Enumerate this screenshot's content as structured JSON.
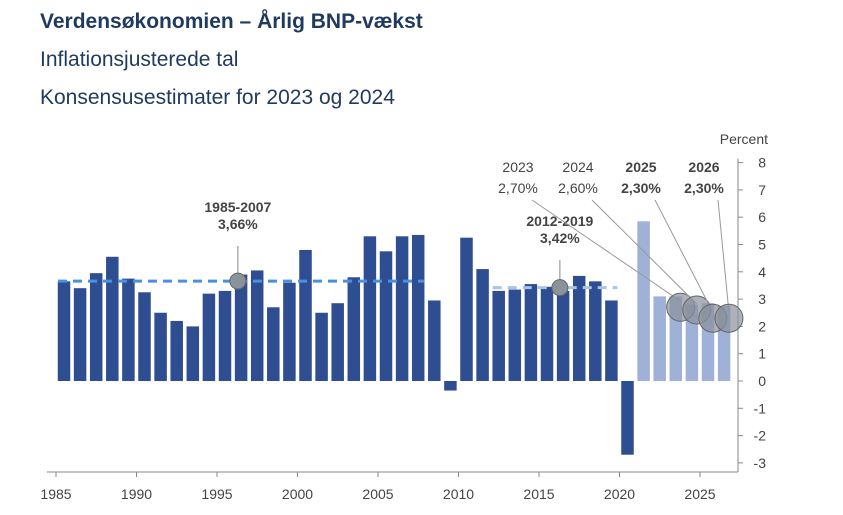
{
  "title": "Verdensøkonomien – Årlig BNP-vækst",
  "subtitle1": "Inflationsjusterede tal",
  "subtitle2": "Konsensusestimater for 2023 og 2024",
  "chart_data": {
    "type": "bar",
    "ylabel": "Percent",
    "ylim": [
      -3,
      8
    ],
    "yticks": [
      8,
      7,
      6,
      5,
      4,
      3,
      2,
      1,
      0,
      -1,
      -2,
      -3
    ],
    "xticks": [
      1985,
      1990,
      1995,
      2000,
      2005,
      2010,
      2015,
      2020,
      2025
    ],
    "colors": {
      "actual": "#2f4d91",
      "estimate": "#9fb1d6",
      "avg_line": "#4a90e2",
      "avg_line2": "#a8c4e8",
      "marker": "#8a929c"
    },
    "actual": {
      "x": [
        1985,
        1986,
        1987,
        1988,
        1989,
        1990,
        1991,
        1992,
        1993,
        1994,
        1995,
        1996,
        1997,
        1998,
        1999,
        2000,
        2001,
        2002,
        2003,
        2004,
        2005,
        2006,
        2007,
        2008,
        2009,
        2010,
        2011,
        2012,
        2013,
        2014,
        2015,
        2016,
        2017,
        2018,
        2019,
        2020
      ],
      "values": [
        3.65,
        3.4,
        3.95,
        4.55,
        3.75,
        3.25,
        2.5,
        2.2,
        2.0,
        3.2,
        3.3,
        3.9,
        4.05,
        2.7,
        3.6,
        4.8,
        2.5,
        2.85,
        3.8,
        5.3,
        4.75,
        5.3,
        5.35,
        2.95,
        -0.35,
        5.25,
        4.1,
        3.3,
        3.35,
        3.55,
        3.45,
        3.3,
        3.85,
        3.65,
        2.95,
        -2.7
      ]
    },
    "estimate": {
      "x": [
        2021,
        2022,
        2023,
        2024,
        2025,
        2026
      ],
      "values": [
        5.85,
        3.1,
        3.1,
        2.8,
        2.85,
        2.75
      ]
    },
    "averages": [
      {
        "period": "1985-2007",
        "value": "3,66%",
        "y": 3.66,
        "from": 1985,
        "to": 2007,
        "marker_x": 1995.8
      },
      {
        "period": "2012-2019",
        "value": "3,42%",
        "y": 3.42,
        "from": 2012,
        "to": 2019,
        "marker_x": 2015.8
      }
    ],
    "forecasts": [
      {
        "year": "2023",
        "value": "2,70%",
        "bold": false,
        "marker_x": 2023.3,
        "marker_y": 2.7
      },
      {
        "year": "2024",
        "value": "2,60%",
        "bold": false,
        "marker_x": 2024.3,
        "marker_y": 2.6
      },
      {
        "year": "2025",
        "value": "2,30%",
        "bold": true,
        "marker_x": 2025.3,
        "marker_y": 2.3
      },
      {
        "year": "2026",
        "value": "2,30%",
        "bold": true,
        "marker_x": 2026.3,
        "marker_y": 2.3
      }
    ]
  }
}
